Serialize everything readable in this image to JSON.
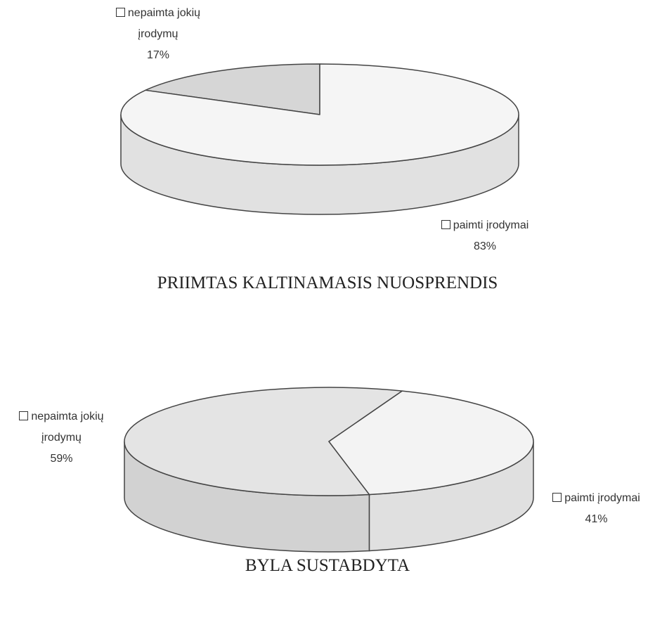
{
  "chart_data": [
    {
      "type": "pie",
      "title": "PRIIMTAS KALTINAMASIS NUOSPRENDIS",
      "categories": [
        "nepaimta jokių įrodymų",
        "paimti įrodymai"
      ],
      "values": [
        17,
        83
      ],
      "value_labels": [
        "17%",
        "83%"
      ],
      "colors": [
        "#d6d6d6",
        "#f5f5f5"
      ]
    },
    {
      "type": "pie",
      "title": "BYLA SUSTABDYTA",
      "categories": [
        "nepaimta jokių įrodymų",
        "paimti įrodymai"
      ],
      "values": [
        59,
        41
      ],
      "value_labels": [
        "59%",
        "41%"
      ],
      "colors": [
        "#e4e4e4",
        "#f3f3f3"
      ]
    }
  ]
}
